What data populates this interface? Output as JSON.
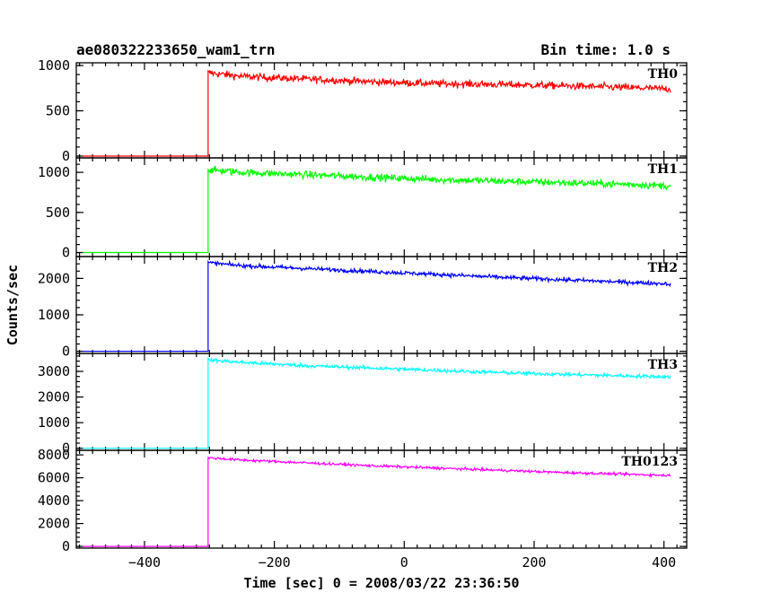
{
  "header": {
    "title": "ae080322233650_wam1_trn",
    "bin_time": "Bin time: 1.0 s"
  },
  "axes": {
    "xlabel": "Time [sec] 0 = 2008/03/22 23:36:50",
    "ylabel": "Counts/sec"
  },
  "chart_data": {
    "type": "line",
    "title": "ae080322233650_wam1_trn",
    "subtitle": "Bin time: 1.0 s",
    "xlabel": "Time [sec] 0 = 2008/03/22 23:36:50",
    "ylabel": "Counts/sec",
    "xlim": [
      -505,
      435
    ],
    "xticks": [
      -400,
      -200,
      0,
      200,
      400
    ],
    "step_time": -302,
    "x_end": 410,
    "panels": [
      {
        "name": "TH0",
        "color": "#ff0000",
        "ylim": [
          -20,
          1030
        ],
        "yticks": [
          0,
          500,
          1000
        ],
        "pre_level": 0,
        "x": [
          -302,
          -250,
          -150,
          -50,
          50,
          150,
          250,
          350,
          410
        ],
        "y": [
          920,
          880,
          850,
          820,
          800,
          790,
          775,
          755,
          740
        ],
        "noise": 40
      },
      {
        "name": "TH1",
        "color": "#00ff00",
        "ylim": [
          -50,
          1180
        ],
        "yticks": [
          0,
          500,
          1000
        ],
        "pre_level": 0,
        "x": [
          -302,
          -250,
          -150,
          -50,
          50,
          150,
          250,
          350,
          410
        ],
        "y": [
          1030,
          1000,
          970,
          940,
          910,
          890,
          870,
          850,
          830
        ],
        "noise": 45
      },
      {
        "name": "TH2",
        "color": "#0000ff",
        "ylim": [
          -60,
          2600
        ],
        "yticks": [
          0,
          1000,
          2000
        ],
        "pre_level": 0,
        "x": [
          -302,
          -250,
          -150,
          -50,
          50,
          150,
          250,
          350,
          410
        ],
        "y": [
          2430,
          2350,
          2270,
          2190,
          2110,
          2030,
          1960,
          1890,
          1850
        ],
        "noise": 55
      },
      {
        "name": "TH3",
        "color": "#00ffff",
        "ylim": [
          -80,
          3700
        ],
        "yticks": [
          0,
          1000,
          2000,
          3000
        ],
        "pre_level": 0,
        "x": [
          -302,
          -250,
          -150,
          -50,
          50,
          150,
          250,
          350,
          410
        ],
        "y": [
          3450,
          3350,
          3220,
          3130,
          3040,
          2950,
          2880,
          2820,
          2790
        ],
        "noise": 70
      },
      {
        "name": "TH0123",
        "color": "#ff00ff",
        "ylim": [
          -150,
          8400
        ],
        "yticks": [
          0,
          2000,
          4000,
          6000,
          8000
        ],
        "pre_level": 0,
        "x": [
          -302,
          -250,
          -150,
          -50,
          50,
          150,
          250,
          350,
          410
        ],
        "y": [
          7750,
          7550,
          7300,
          7050,
          6850,
          6650,
          6450,
          6300,
          6200
        ],
        "noise": 110
      }
    ]
  }
}
